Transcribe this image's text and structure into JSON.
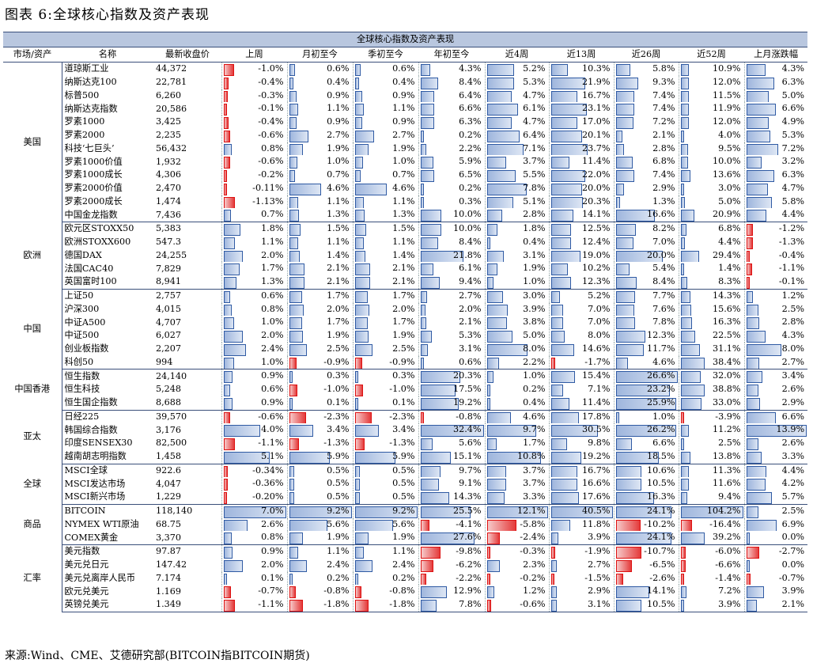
{
  "title": "图表 6:全球核心指数及资产表现",
  "source": "来源:Wind、CME、艾德研究部(BITCOIN指BITCOIN期货)",
  "banner": "全球核心指数及资产表现",
  "columns": [
    "市场/资产",
    "名称",
    "最新收盘价",
    "上周",
    "月初至今",
    "季初至今",
    "年初至今",
    "近4周",
    "近13周",
    "近26周",
    "近52周",
    "上月涨跌幅"
  ],
  "groups": [
    {
      "market": "美国",
      "rows": [
        {
          "name": "道琼斯工业",
          "close": "44,372",
          "values": [
            "-1.0%",
            "0.6%",
            "0.6%",
            "4.3%",
            "5.2%",
            "10.3%",
            "5.8%",
            "10.9%",
            "4.3%"
          ]
        },
        {
          "name": "纳斯达克100",
          "close": "22,781",
          "values": [
            "-0.4%",
            "0.4%",
            "0.4%",
            "8.4%",
            "5.3%",
            "21.9%",
            "9.3%",
            "12.0%",
            "6.3%"
          ]
        },
        {
          "name": "标普500",
          "close": "6,260",
          "values": [
            "-0.3%",
            "0.9%",
            "0.9%",
            "6.4%",
            "4.7%",
            "16.7%",
            "7.4%",
            "11.5%",
            "5.0%"
          ]
        },
        {
          "name": "纳斯达克指数",
          "close": "20,586",
          "values": [
            "-0.1%",
            "1.1%",
            "1.1%",
            "6.6%",
            "6.1%",
            "23.1%",
            "7.4%",
            "11.9%",
            "6.6%"
          ]
        },
        {
          "name": "罗素1000",
          "close": "3,425",
          "values": [
            "-0.4%",
            "0.9%",
            "0.9%",
            "6.3%",
            "4.7%",
            "17.0%",
            "7.2%",
            "12.0%",
            "4.9%"
          ]
        },
        {
          "name": "罗素2000",
          "close": "2,235",
          "values": [
            "-0.6%",
            "2.7%",
            "2.7%",
            "0.2%",
            "6.4%",
            "20.1%",
            "2.1%",
            "4.0%",
            "5.3%"
          ]
        },
        {
          "name": "科技‘七巨头’",
          "close": "56,432",
          "values": [
            "0.8%",
            "1.9%",
            "1.9%",
            "2.2%",
            "7.1%",
            "23.7%",
            "2.8%",
            "9.5%",
            "7.2%"
          ]
        },
        {
          "name": "罗素1000价值",
          "close": "1,932",
          "values": [
            "-0.6%",
            "1.0%",
            "1.0%",
            "5.9%",
            "3.7%",
            "11.4%",
            "6.8%",
            "10.0%",
            "3.2%"
          ]
        },
        {
          "name": "罗素1000成长",
          "close": "4,306",
          "values": [
            "-0.2%",
            "0.7%",
            "0.7%",
            "6.5%",
            "5.5%",
            "22.0%",
            "7.4%",
            "13.6%",
            "6.3%"
          ]
        },
        {
          "name": "罗素2000价值",
          "close": "2,470",
          "values": [
            "-0.11%",
            "4.6%",
            "4.6%",
            "0.2%",
            "7.8%",
            "20.0%",
            "2.9%",
            "3.0%",
            "4.7%"
          ]
        },
        {
          "name": "罗素2000成长",
          "close": "1,474",
          "values": [
            "-1.13%",
            "1.1%",
            "1.1%",
            "0.3%",
            "5.1%",
            "20.3%",
            "1.3%",
            "5.0%",
            "5.8%"
          ]
        },
        {
          "name": "中国金龙指数",
          "close": "7,436",
          "values": [
            "0.7%",
            "1.3%",
            "1.3%",
            "10.0%",
            "2.8%",
            "14.1%",
            "16.6%",
            "20.9%",
            "4.4%"
          ]
        }
      ]
    },
    {
      "market": "欧洲",
      "rows": [
        {
          "name": "欧元区STOXX50",
          "close": "5,383",
          "values": [
            "1.8%",
            "1.5%",
            "1.5%",
            "10.0%",
            "1.8%",
            "12.5%",
            "8.2%",
            "6.8%",
            "-1.2%"
          ]
        },
        {
          "name": "欧洲STOXX600",
          "close": "547.3",
          "values": [
            "1.1%",
            "1.1%",
            "1.1%",
            "8.4%",
            "0.4%",
            "12.4%",
            "7.0%",
            "4.4%",
            "-1.3%"
          ]
        },
        {
          "name": "德国DAX",
          "close": "24,255",
          "values": [
            "2.0%",
            "1.4%",
            "1.4%",
            "21.8%",
            "3.1%",
            "19.0%",
            "20.0%",
            "29.4%",
            "-0.4%"
          ]
        },
        {
          "name": "法国CAC40",
          "close": "7,829",
          "values": [
            "1.7%",
            "2.1%",
            "2.1%",
            "6.1%",
            "1.9%",
            "10.2%",
            "5.4%",
            "1.4%",
            "-1.1%"
          ]
        },
        {
          "name": "英国富时100",
          "close": "8,941",
          "values": [
            "1.3%",
            "2.1%",
            "2.1%",
            "9.4%",
            "1.0%",
            "12.3%",
            "8.4%",
            "8.3%",
            "-0.1%"
          ]
        }
      ]
    },
    {
      "market": "中国",
      "rows": [
        {
          "name": "上证50",
          "close": "2,757",
          "values": [
            "0.6%",
            "1.7%",
            "1.7%",
            "2.7%",
            "3.0%",
            "5.2%",
            "7.7%",
            "14.3%",
            "1.2%"
          ]
        },
        {
          "name": "沪深300",
          "close": "4,015",
          "values": [
            "0.8%",
            "2.0%",
            "2.0%",
            "2.0%",
            "3.9%",
            "7.0%",
            "7.6%",
            "15.6%",
            "2.5%"
          ]
        },
        {
          "name": "中证A500",
          "close": "4,707",
          "values": [
            "1.0%",
            "1.7%",
            "1.7%",
            "2.1%",
            "3.8%",
            "7.0%",
            "7.8%",
            "16.3%",
            "2.8%"
          ]
        },
        {
          "name": "中证500",
          "close": "6,027",
          "values": [
            "2.0%",
            "1.9%",
            "1.9%",
            "5.3%",
            "5.0%",
            "8.0%",
            "12.3%",
            "22.5%",
            "4.3%"
          ]
        },
        {
          "name": "创业板指数",
          "close": "2,207",
          "values": [
            "2.4%",
            "2.5%",
            "2.5%",
            "3.1%",
            "8.0%",
            "14.6%",
            "11.7%",
            "31.1%",
            "8.0%"
          ]
        },
        {
          "name": "科创50",
          "close": "994",
          "values": [
            "1.0%",
            "-0.9%",
            "-0.9%",
            "0.6%",
            "2.2%",
            "-1.7%",
            "4.6%",
            "38.4%",
            "2.7%"
          ]
        }
      ]
    },
    {
      "market": "中国香港",
      "rows": [
        {
          "name": "恒生指数",
          "close": "24,140",
          "values": [
            "0.9%",
            "0.3%",
            "0.3%",
            "20.3%",
            "1.0%",
            "15.4%",
            "26.6%",
            "32.0%",
            "3.4%"
          ]
        },
        {
          "name": "恒生科技",
          "close": "5,248",
          "values": [
            "0.6%",
            "-1.0%",
            "-1.0%",
            "17.5%",
            "0.2%",
            "7.1%",
            "23.2%",
            "38.8%",
            "2.6%"
          ]
        },
        {
          "name": "恒生国企指数",
          "close": "8,688",
          "values": [
            "0.9%",
            "0.1%",
            "0.1%",
            "19.2%",
            "0.4%",
            "11.4%",
            "25.9%",
            "33.0%",
            "2.9%"
          ]
        }
      ]
    },
    {
      "market": "亚太",
      "rows": [
        {
          "name": "日经225",
          "close": "39,570",
          "values": [
            "-0.6%",
            "-2.3%",
            "-2.3%",
            "-0.8%",
            "4.6%",
            "17.8%",
            "1.0%",
            "-3.9%",
            "6.6%"
          ]
        },
        {
          "name": "韩国综合指数",
          "close": "3,176",
          "values": [
            "4.0%",
            "3.4%",
            "3.4%",
            "32.4%",
            "9.7%",
            "30.5%",
            "26.2%",
            "11.2%",
            "13.9%"
          ]
        },
        {
          "name": "印度SENSEX30",
          "close": "82,500",
          "values": [
            "-1.1%",
            "-1.3%",
            "-1.3%",
            "5.6%",
            "1.7%",
            "9.8%",
            "6.6%",
            "2.5%",
            "2.6%"
          ]
        },
        {
          "name": "越南胡志明指数",
          "close": "1,458",
          "values": [
            "5.1%",
            "5.9%",
            "5.9%",
            "15.1%",
            "10.8%",
            "19.2%",
            "18.5%",
            "13.8%",
            "3.3%"
          ]
        }
      ]
    },
    {
      "market": "全球",
      "rows": [
        {
          "name": "MSCI全球",
          "close": "922.6",
          "values": [
            "-0.34%",
            "0.5%",
            "0.5%",
            "9.7%",
            "3.7%",
            "16.7%",
            "10.6%",
            "11.3%",
            "4.4%"
          ]
        },
        {
          "name": "MSCI发达市场",
          "close": "4,047",
          "values": [
            "-0.36%",
            "0.5%",
            "0.5%",
            "9.1%",
            "3.7%",
            "16.6%",
            "10.5%",
            "11.6%",
            "4.2%"
          ]
        },
        {
          "name": "MSCI新兴市场",
          "close": "1,229",
          "values": [
            "-0.20%",
            "0.5%",
            "0.5%",
            "14.3%",
            "3.3%",
            "17.6%",
            "16.3%",
            "9.4%",
            "5.7%"
          ]
        }
      ]
    },
    {
      "market": "商品",
      "rows": [
        {
          "name": "BITCOIN",
          "close": "118,140",
          "values": [
            "7.0%",
            "9.2%",
            "9.2%",
            "25.5%",
            "12.1%",
            "40.5%",
            "24.1%",
            "104.2%",
            "2.5%"
          ]
        },
        {
          "name": "NYMEX WTI原油",
          "close": "68.75",
          "values": [
            "2.6%",
            "5.6%",
            "5.6%",
            "-4.1%",
            "-5.8%",
            "11.8%",
            "-10.2%",
            "-16.4%",
            "6.9%"
          ]
        },
        {
          "name": "COMEX黄金",
          "close": "3,370",
          "values": [
            "0.8%",
            "1.9%",
            "1.9%",
            "27.6%",
            "-2.4%",
            "3.9%",
            "24.1%",
            "39.2%",
            "0.0%"
          ]
        }
      ]
    },
    {
      "market": "汇率",
      "rows": [
        {
          "name": "美元指数",
          "close": "97.87",
          "values": [
            "0.9%",
            "1.1%",
            "1.1%",
            "-9.8%",
            "-0.3%",
            "-1.9%",
            "-10.7%",
            "-6.0%",
            "-2.7%"
          ]
        },
        {
          "name": "美元兑日元",
          "close": "147.42",
          "values": [
            "2.0%",
            "2.4%",
            "2.4%",
            "-6.2%",
            "2.3%",
            "2.7%",
            "-6.5%",
            "-6.6%",
            "0.0%"
          ]
        },
        {
          "name": "美元兑离岸人民币",
          "close": "7.174",
          "values": [
            "0.1%",
            "0.2%",
            "0.2%",
            "-2.2%",
            "-0.2%",
            "-1.5%",
            "-2.6%",
            "-1.4%",
            "-0.7%"
          ]
        },
        {
          "name": "欧元兑美元",
          "close": "1.169",
          "values": [
            "-0.7%",
            "-0.8%",
            "-0.8%",
            "12.9%",
            "1.2%",
            "2.9%",
            "14.1%",
            "7.2%",
            "3.9%"
          ]
        },
        {
          "name": "英镑兑美元",
          "close": "1.349",
          "values": [
            "-1.1%",
            "-1.8%",
            "-1.8%",
            "7.8%",
            "-0.6%",
            "3.1%",
            "10.5%",
            "3.9%",
            "2.1%"
          ]
        }
      ]
    }
  ],
  "colors": {
    "positive_bar": "#9fb6dd",
    "negative_bar": "#e43a3a",
    "header": "#b9c7df"
  }
}
